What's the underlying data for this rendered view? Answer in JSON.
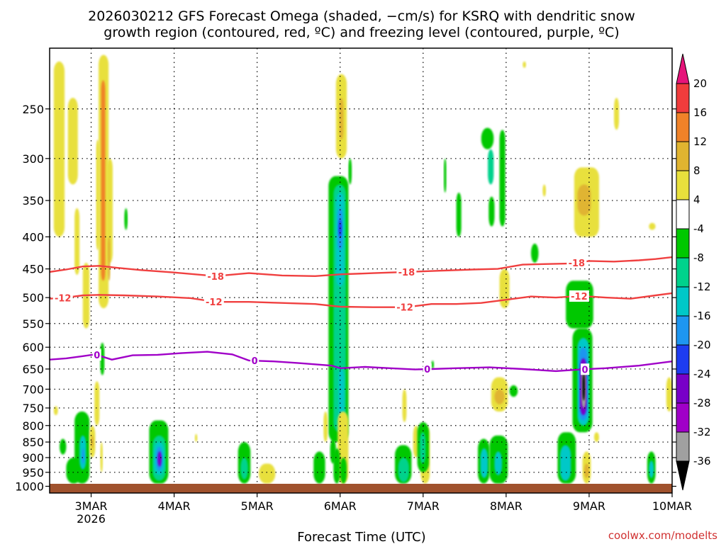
{
  "chart_data": {
    "type": "time-height cross section",
    "title_line1": "2026030212 GFS Forecast Omega (shaded, −cm/s) for KSRQ with dendritic snow",
    "title_line2": "growth region (contoured, red, ºC) and freezing level (contoured, purple, ºC)",
    "xlabel": "Forecast Time (UTC)",
    "ylabel": "",
    "credit": "coolwx.com/modelts",
    "x_start_day": 2.5,
    "x_end_day": 10,
    "x_ticks": [
      {
        "day": 3,
        "label": "3MAR",
        "sublabel": "2026"
      },
      {
        "day": 4,
        "label": "4MAR"
      },
      {
        "day": 5,
        "label": "5MAR"
      },
      {
        "day": 6,
        "label": "6MAR"
      },
      {
        "day": 7,
        "label": "7MAR"
      },
      {
        "day": 8,
        "label": "8MAR"
      },
      {
        "day": 9,
        "label": "9MAR"
      },
      {
        "day": 10,
        "label": "10MAR"
      }
    ],
    "y_axis": "pressure (hPa), log scale, inverted",
    "y_range": [
      1025,
      200
    ],
    "y_ticks": [
      250,
      300,
      350,
      400,
      450,
      500,
      550,
      600,
      650,
      700,
      750,
      800,
      850,
      900,
      950,
      1000
    ],
    "colorbar": {
      "labels": [
        "20",
        "16",
        "12",
        "8",
        "4",
        "-4",
        "-8",
        "-12",
        "-16",
        "-20",
        "-24",
        "-28",
        "-32",
        "-36"
      ],
      "bins": [
        {
          "range": "16 to 20",
          "color": "#f03c3c"
        },
        {
          "range": "12 to 16",
          "color": "#f08228"
        },
        {
          "range": "8 to 12",
          "color": "#e0b430"
        },
        {
          "range": "4 to 8",
          "color": "#e8e03c"
        },
        {
          "range": "-4 to 4",
          "color": "#ffffff"
        },
        {
          "range": "-8 to -4",
          "color": "#00c800"
        },
        {
          "range": "-12 to -8",
          "color": "#00d28c"
        },
        {
          "range": "-16 to -12",
          "color": "#00c8c8"
        },
        {
          "range": "-20 to -16",
          "color": "#1e96f0"
        },
        {
          "range": "-24 to -20",
          "color": "#1e3cf0"
        },
        {
          "range": "-28 to -24",
          "color": "#7800c8"
        },
        {
          "range": "-32 to -28",
          "color": "#a000c8"
        },
        {
          "range": "-36 to -32",
          "color": "#a0a0a0"
        }
      ],
      "over_color": "#e6147a",
      "under_color": "#000000"
    },
    "omega_cells": [
      {
        "t0": 2.55,
        "t1": 2.68,
        "p0": 210,
        "p1": 400,
        "v": 5
      },
      {
        "t0": 2.72,
        "t1": 2.84,
        "p0": 240,
        "p1": 330,
        "v": 5
      },
      {
        "t0": 2.8,
        "t1": 2.86,
        "p0": 360,
        "p1": 460,
        "v": 5
      },
      {
        "t0": 2.9,
        "t1": 2.98,
        "p0": 440,
        "p1": 560,
        "v": 5
      },
      {
        "t0": 3.04,
        "t1": 3.1,
        "p0": 680,
        "p1": 800,
        "v": 5
      },
      {
        "t0": 3.06,
        "t1": 3.1,
        "p0": 280,
        "p1": 420,
        "v": 5
      },
      {
        "t0": 3.09,
        "t1": 3.21,
        "p0": 205,
        "p1": 520,
        "v": 5
      },
      {
        "t0": 3.12,
        "t1": 3.17,
        "p0": 225,
        "p1": 470,
        "v": 14
      },
      {
        "t0": 3.19,
        "t1": 3.26,
        "p0": 300,
        "p1": 440,
        "v": 5
      },
      {
        "t0": 3.2,
        "t1": 3.23,
        "p0": 400,
        "p1": 470,
        "v": 10
      },
      {
        "t0": 3.11,
        "t1": 3.16,
        "p0": 590,
        "p1": 665,
        "v": -6
      },
      {
        "t0": 3.4,
        "t1": 3.44,
        "p0": 360,
        "p1": 390,
        "v": -6
      },
      {
        "t0": 2.55,
        "t1": 2.6,
        "p0": 745,
        "p1": 770,
        "v": 5
      },
      {
        "t0": 2.62,
        "t1": 2.7,
        "p0": 840,
        "p1": 890,
        "v": -6
      },
      {
        "t0": 2.7,
        "t1": 2.88,
        "p0": 900,
        "p1": 990,
        "v": -6
      },
      {
        "t0": 2.8,
        "t1": 2.98,
        "p0": 760,
        "p1": 990,
        "v": -6
      },
      {
        "t0": 2.86,
        "t1": 2.94,
        "p0": 830,
        "p1": 940,
        "v": -12
      },
      {
        "t0": 2.89,
        "t1": 2.92,
        "p0": 870,
        "p1": 920,
        "v": -18
      },
      {
        "t0": 2.98,
        "t1": 3.05,
        "p0": 800,
        "p1": 900,
        "v": 5
      },
      {
        "t0": 3.0,
        "t1": 3.03,
        "p0": 830,
        "p1": 870,
        "v": 10
      },
      {
        "t0": 3.11,
        "t1": 3.14,
        "p0": 850,
        "p1": 950,
        "v": 5
      },
      {
        "t0": 3.7,
        "t1": 3.93,
        "p0": 785,
        "p1": 990,
        "v": -6
      },
      {
        "t0": 3.74,
        "t1": 3.9,
        "p0": 830,
        "p1": 980,
        "v": -10
      },
      {
        "t0": 3.76,
        "t1": 3.88,
        "p0": 850,
        "p1": 960,
        "v": -14
      },
      {
        "t0": 3.78,
        "t1": 3.86,
        "p0": 865,
        "p1": 945,
        "v": -18
      },
      {
        "t0": 3.8,
        "t1": 3.85,
        "p0": 880,
        "p1": 930,
        "v": -26
      },
      {
        "t0": 4.25,
        "t1": 4.28,
        "p0": 825,
        "p1": 850,
        "v": 5
      },
      {
        "t0": 4.77,
        "t1": 4.92,
        "p0": 850,
        "p1": 990,
        "v": -6
      },
      {
        "t0": 4.8,
        "t1": 4.89,
        "p0": 900,
        "p1": 975,
        "v": -10
      },
      {
        "t0": 5.02,
        "t1": 5.22,
        "p0": 920,
        "p1": 990,
        "v": 5
      },
      {
        "t0": 5.95,
        "t1": 6.08,
        "p0": 220,
        "p1": 300,
        "v": 5
      },
      {
        "t0": 5.99,
        "t1": 6.04,
        "p0": 240,
        "p1": 280,
        "v": 10
      },
      {
        "t0": 5.86,
        "t1": 6.1,
        "p0": 320,
        "p1": 850,
        "v": -6
      },
      {
        "t0": 5.92,
        "t1": 6.07,
        "p0": 330,
        "p1": 820,
        "v": -10
      },
      {
        "t0": 5.95,
        "t1": 6.05,
        "p0": 340,
        "p1": 480,
        "v": -14
      },
      {
        "t0": 5.97,
        "t1": 6.03,
        "p0": 360,
        "p1": 420,
        "v": -18
      },
      {
        "t0": 5.98,
        "t1": 6.02,
        "p0": 375,
        "p1": 400,
        "v": -22
      },
      {
        "t0": 5.98,
        "t1": 6.05,
        "p0": 650,
        "p1": 780,
        "v": -14
      },
      {
        "t0": 5.8,
        "t1": 5.85,
        "p0": 760,
        "p1": 850,
        "v": 5
      },
      {
        "t0": 5.97,
        "t1": 6.1,
        "p0": 760,
        "p1": 990,
        "v": 5
      },
      {
        "t0": 6.0,
        "t1": 6.08,
        "p0": 900,
        "p1": 990,
        "v": -6
      },
      {
        "t0": 6.1,
        "t1": 6.14,
        "p0": 300,
        "p1": 330,
        "v": -6
      },
      {
        "t0": 5.68,
        "t1": 5.82,
        "p0": 880,
        "p1": 990,
        "v": -6
      },
      {
        "t0": 5.88,
        "t1": 5.95,
        "p0": 840,
        "p1": 920,
        "v": -6
      },
      {
        "t0": 5.92,
        "t1": 6.0,
        "p0": 870,
        "p1": 990,
        "v": -6
      },
      {
        "t0": 6.75,
        "t1": 6.8,
        "p0": 700,
        "p1": 790,
        "v": 5
      },
      {
        "t0": 6.88,
        "t1": 6.95,
        "p0": 800,
        "p1": 900,
        "v": 5
      },
      {
        "t0": 6.97,
        "t1": 7.08,
        "p0": 800,
        "p1": 990,
        "v": 5
      },
      {
        "t0": 6.66,
        "t1": 6.86,
        "p0": 860,
        "p1": 990,
        "v": -6
      },
      {
        "t0": 6.7,
        "t1": 6.83,
        "p0": 900,
        "p1": 985,
        "v": -10
      },
      {
        "t0": 6.93,
        "t1": 7.07,
        "p0": 790,
        "p1": 950,
        "v": -6
      },
      {
        "t0": 6.96,
        "t1": 7.03,
        "p0": 820,
        "p1": 920,
        "v": -10
      },
      {
        "t0": 7.25,
        "t1": 7.28,
        "p0": 300,
        "p1": 340,
        "v": -6
      },
      {
        "t0": 7.4,
        "t1": 7.46,
        "p0": 340,
        "p1": 400,
        "v": -6
      },
      {
        "t0": 7.1,
        "t1": 7.13,
        "p0": 630,
        "p1": 650,
        "v": -6
      },
      {
        "t0": 7.7,
        "t1": 7.85,
        "p0": 268,
        "p1": 290,
        "v": -6
      },
      {
        "t0": 7.78,
        "t1": 7.85,
        "p0": 290,
        "p1": 330,
        "v": -10
      },
      {
        "t0": 7.92,
        "t1": 7.99,
        "p0": 270,
        "p1": 385,
        "v": -6
      },
      {
        "t0": 7.79,
        "t1": 7.86,
        "p0": 345,
        "p1": 385,
        "v": -6
      },
      {
        "t0": 7.92,
        "t1": 8.04,
        "p0": 450,
        "p1": 520,
        "v": 5
      },
      {
        "t0": 7.82,
        "t1": 8.02,
        "p0": 670,
        "p1": 760,
        "v": 5
      },
      {
        "t0": 7.86,
        "t1": 7.98,
        "p0": 700,
        "p1": 740,
        "v": 10
      },
      {
        "t0": 8.04,
        "t1": 8.14,
        "p0": 690,
        "p1": 720,
        "v": -6
      },
      {
        "t0": 7.66,
        "t1": 7.8,
        "p0": 840,
        "p1": 990,
        "v": -6
      },
      {
        "t0": 7.69,
        "t1": 7.78,
        "p0": 870,
        "p1": 970,
        "v": -12
      },
      {
        "t0": 7.8,
        "t1": 8.02,
        "p0": 830,
        "p1": 990,
        "v": -6
      },
      {
        "t0": 7.86,
        "t1": 7.95,
        "p0": 880,
        "p1": 960,
        "v": -12
      },
      {
        "t0": 8.3,
        "t1": 8.39,
        "p0": 410,
        "p1": 440,
        "v": -6
      },
      {
        "t0": 8.44,
        "t1": 8.48,
        "p0": 330,
        "p1": 345,
        "v": 5
      },
      {
        "t0": 8.82,
        "t1": 9.12,
        "p0": 310,
        "p1": 400,
        "v": 5
      },
      {
        "t0": 8.86,
        "t1": 9.02,
        "p0": 330,
        "p1": 370,
        "v": 10
      },
      {
        "t0": 9.3,
        "t1": 9.36,
        "p0": 240,
        "p1": 270,
        "v": 5
      },
      {
        "t0": 8.2,
        "t1": 8.24,
        "p0": 210,
        "p1": 215,
        "v": 5
      },
      {
        "t0": 8.72,
        "t1": 9.05,
        "p0": 470,
        "p1": 560,
        "v": -6
      },
      {
        "t0": 8.8,
        "t1": 9.04,
        "p0": 560,
        "p1": 820,
        "v": -6
      },
      {
        "t0": 8.86,
        "t1": 9.0,
        "p0": 580,
        "p1": 800,
        "v": -12
      },
      {
        "t0": 8.88,
        "t1": 8.98,
        "p0": 600,
        "p1": 785,
        "v": -18
      },
      {
        "t0": 8.89,
        "t1": 8.97,
        "p0": 625,
        "p1": 770,
        "v": -26
      },
      {
        "t0": 8.91,
        "t1": 8.96,
        "p0": 640,
        "p1": 750,
        "v": -34
      },
      {
        "t0": 8.92,
        "t1": 8.95,
        "p0": 660,
        "p1": 730,
        "v": -40
      },
      {
        "t0": 9.06,
        "t1": 9.12,
        "p0": 820,
        "p1": 850,
        "v": 5
      },
      {
        "t0": 8.62,
        "t1": 8.84,
        "p0": 820,
        "p1": 990,
        "v": -6
      },
      {
        "t0": 8.65,
        "t1": 8.78,
        "p0": 860,
        "p1": 980,
        "v": -12
      },
      {
        "t0": 8.92,
        "t1": 9.02,
        "p0": 880,
        "p1": 990,
        "v": 5
      },
      {
        "t0": 8.94,
        "t1": 9.0,
        "p0": 920,
        "p1": 970,
        "v": 10
      },
      {
        "t0": 9.7,
        "t1": 9.8,
        "p0": 880,
        "p1": 990,
        "v": -6
      },
      {
        "t0": 9.72,
        "t1": 9.78,
        "p0": 910,
        "p1": 970,
        "v": -12
      },
      {
        "t0": 9.93,
        "t1": 10.0,
        "p0": 670,
        "p1": 760,
        "v": 5
      },
      {
        "t0": 9.72,
        "t1": 9.8,
        "p0": 380,
        "p1": 390,
        "v": 5
      }
    ],
    "contours": [
      {
        "level": "-18",
        "label": "-18",
        "color": "#f04040",
        "points": [
          [
            2.5,
            455
          ],
          [
            2.7,
            451
          ],
          [
            2.9,
            446
          ],
          [
            3.1,
            445
          ],
          [
            3.3,
            448
          ],
          [
            3.6,
            452
          ],
          [
            4.0,
            456
          ],
          [
            4.5,
            462
          ],
          [
            4.9,
            457
          ],
          [
            5.3,
            461
          ],
          [
            5.7,
            462
          ],
          [
            6.0,
            459
          ],
          [
            6.4,
            457
          ],
          [
            6.8,
            455
          ],
          [
            7.2,
            453
          ],
          [
            7.6,
            451
          ],
          [
            7.9,
            450
          ],
          [
            8.2,
            443
          ],
          [
            8.5,
            442
          ],
          [
            8.8,
            441
          ],
          [
            9.0,
            437
          ],
          [
            9.3,
            438
          ],
          [
            9.6,
            436
          ],
          [
            9.8,
            434
          ],
          [
            10.0,
            431
          ]
        ],
        "labels_at": [
          4.5,
          6.8,
          8.85
        ]
      },
      {
        "level": "-12",
        "label": "-12",
        "color": "#f04040",
        "points": [
          [
            2.5,
            502
          ],
          [
            2.7,
            500
          ],
          [
            2.9,
            496
          ],
          [
            3.1,
            495
          ],
          [
            3.4,
            496
          ],
          [
            3.8,
            498
          ],
          [
            4.2,
            501
          ],
          [
            4.5,
            508
          ],
          [
            4.9,
            508
          ],
          [
            5.3,
            510
          ],
          [
            5.7,
            512
          ],
          [
            6.0,
            517
          ],
          [
            6.4,
            518
          ],
          [
            6.8,
            518
          ],
          [
            7.1,
            512
          ],
          [
            7.4,
            512
          ],
          [
            7.7,
            510
          ],
          [
            8.0,
            504
          ],
          [
            8.3,
            498
          ],
          [
            8.6,
            500
          ],
          [
            8.9,
            497
          ],
          [
            9.2,
            500
          ],
          [
            9.5,
            502
          ],
          [
            9.8,
            496
          ],
          [
            10.0,
            492
          ]
        ],
        "labels_at": [
          2.66,
          4.48,
          6.78,
          8.88
        ]
      },
      {
        "level": "0",
        "label": "0",
        "color": "#a000c8",
        "points": [
          [
            2.5,
            628
          ],
          [
            2.7,
            625
          ],
          [
            2.9,
            620
          ],
          [
            3.05,
            616
          ],
          [
            3.25,
            628
          ],
          [
            3.5,
            618
          ],
          [
            3.8,
            617
          ],
          [
            4.1,
            613
          ],
          [
            4.4,
            610
          ],
          [
            4.7,
            616
          ],
          [
            4.9,
            630
          ],
          [
            5.2,
            632
          ],
          [
            5.5,
            636
          ],
          [
            5.9,
            642
          ],
          [
            6.0,
            648
          ],
          [
            6.3,
            645
          ],
          [
            6.6,
            648
          ],
          [
            6.9,
            651
          ],
          [
            7.1,
            650
          ],
          [
            7.4,
            648
          ],
          [
            7.8,
            646
          ],
          [
            8.2,
            650
          ],
          [
            8.6,
            655
          ],
          [
            8.9,
            651
          ],
          [
            9.2,
            648
          ],
          [
            9.6,
            642
          ],
          [
            10.0,
            632
          ]
        ],
        "labels_at": [
          3.07,
          4.97,
          7.05,
          8.95
        ]
      }
    ]
  }
}
